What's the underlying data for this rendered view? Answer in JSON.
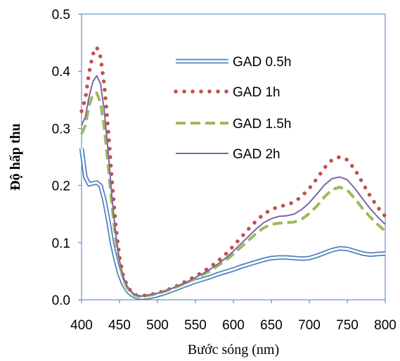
{
  "chart_data": {
    "type": "line",
    "title": "",
    "xlabel": "Bước sóng (nm)",
    "ylabel": "Độ hấp thu",
    "xlim": [
      400,
      800
    ],
    "ylim": [
      0,
      0.5
    ],
    "x_ticks": [
      "400",
      "450",
      "500",
      "550",
      "600",
      "650",
      "700",
      "750",
      "800"
    ],
    "y_ticks": [
      "0.0",
      "0.1",
      "0.2",
      "0.3",
      "0.4",
      "0.5"
    ],
    "grid": false,
    "legend_position": "top-right",
    "series": [
      {
        "name": "GAD 0.5h",
        "style": "double",
        "color": "#4F81BD",
        "points": [
          [
            400,
            0.265
          ],
          [
            405,
            0.215
          ],
          [
            410,
            0.202
          ],
          [
            415,
            0.204
          ],
          [
            420,
            0.205
          ],
          [
            425,
            0.2
          ],
          [
            430,
            0.175
          ],
          [
            435,
            0.14
          ],
          [
            440,
            0.1
          ],
          [
            445,
            0.07
          ],
          [
            450,
            0.045
          ],
          [
            455,
            0.028
          ],
          [
            460,
            0.017
          ],
          [
            465,
            0.01
          ],
          [
            470,
            0.006
          ],
          [
            475,
            0.004
          ],
          [
            480,
            0.0035
          ],
          [
            490,
            0.005
          ],
          [
            500,
            0.008
          ],
          [
            510,
            0.012
          ],
          [
            520,
            0.017
          ],
          [
            530,
            0.022
          ],
          [
            540,
            0.027
          ],
          [
            550,
            0.032
          ],
          [
            560,
            0.036
          ],
          [
            570,
            0.04
          ],
          [
            580,
            0.045
          ],
          [
            590,
            0.049
          ],
          [
            600,
            0.053
          ],
          [
            610,
            0.058
          ],
          [
            620,
            0.062
          ],
          [
            630,
            0.066
          ],
          [
            640,
            0.07
          ],
          [
            650,
            0.073
          ],
          [
            660,
            0.074
          ],
          [
            670,
            0.074
          ],
          [
            680,
            0.073
          ],
          [
            690,
            0.072
          ],
          [
            700,
            0.073
          ],
          [
            710,
            0.077
          ],
          [
            720,
            0.082
          ],
          [
            730,
            0.087
          ],
          [
            740,
            0.09
          ],
          [
            750,
            0.089
          ],
          [
            760,
            0.085
          ],
          [
            770,
            0.081
          ],
          [
            780,
            0.079
          ],
          [
            790,
            0.08
          ],
          [
            800,
            0.081
          ]
        ]
      },
      {
        "name": "GAD 1h",
        "style": "dotted",
        "color": "#C0504D",
        "points": [
          [
            400,
            0.33
          ],
          [
            405,
            0.352
          ],
          [
            410,
            0.398
          ],
          [
            415,
            0.43
          ],
          [
            420,
            0.442
          ],
          [
            425,
            0.425
          ],
          [
            430,
            0.375
          ],
          [
            435,
            0.3
          ],
          [
            440,
            0.21
          ],
          [
            445,
            0.13
          ],
          [
            450,
            0.075
          ],
          [
            455,
            0.042
          ],
          [
            460,
            0.025
          ],
          [
            465,
            0.015
          ],
          [
            470,
            0.009
          ],
          [
            475,
            0.007
          ],
          [
            480,
            0.007
          ],
          [
            490,
            0.009
          ],
          [
            500,
            0.012
          ],
          [
            510,
            0.016
          ],
          [
            520,
            0.021
          ],
          [
            530,
            0.027
          ],
          [
            540,
            0.034
          ],
          [
            550,
            0.041
          ],
          [
            560,
            0.049
          ],
          [
            570,
            0.058
          ],
          [
            580,
            0.068
          ],
          [
            590,
            0.08
          ],
          [
            600,
            0.094
          ],
          [
            610,
            0.109
          ],
          [
            620,
            0.124
          ],
          [
            630,
            0.138
          ],
          [
            640,
            0.15
          ],
          [
            650,
            0.158
          ],
          [
            660,
            0.163
          ],
          [
            670,
            0.166
          ],
          [
            680,
            0.171
          ],
          [
            690,
            0.181
          ],
          [
            700,
            0.195
          ],
          [
            710,
            0.212
          ],
          [
            720,
            0.231
          ],
          [
            730,
            0.245
          ],
          [
            740,
            0.25
          ],
          [
            750,
            0.245
          ],
          [
            760,
            0.228
          ],
          [
            770,
            0.205
          ],
          [
            780,
            0.182
          ],
          [
            790,
            0.162
          ],
          [
            800,
            0.146
          ]
        ]
      },
      {
        "name": "GAD 1.5h",
        "style": "dashed",
        "color": "#9BBB59",
        "points": [
          [
            400,
            0.29
          ],
          [
            405,
            0.305
          ],
          [
            410,
            0.34
          ],
          [
            415,
            0.36
          ],
          [
            420,
            0.362
          ],
          [
            425,
            0.345
          ],
          [
            430,
            0.3
          ],
          [
            435,
            0.235
          ],
          [
            440,
            0.165
          ],
          [
            445,
            0.105
          ],
          [
            450,
            0.062
          ],
          [
            455,
            0.036
          ],
          [
            460,
            0.021
          ],
          [
            465,
            0.013
          ],
          [
            470,
            0.008
          ],
          [
            475,
            0.006
          ],
          [
            480,
            0.006
          ],
          [
            490,
            0.008
          ],
          [
            500,
            0.011
          ],
          [
            510,
            0.015
          ],
          [
            520,
            0.02
          ],
          [
            530,
            0.025
          ],
          [
            540,
            0.031
          ],
          [
            550,
            0.037
          ],
          [
            560,
            0.044
          ],
          [
            570,
            0.051
          ],
          [
            580,
            0.06
          ],
          [
            590,
            0.069
          ],
          [
            600,
            0.08
          ],
          [
            610,
            0.092
          ],
          [
            620,
            0.104
          ],
          [
            630,
            0.116
          ],
          [
            640,
            0.126
          ],
          [
            650,
            0.132
          ],
          [
            660,
            0.134
          ],
          [
            670,
            0.135
          ],
          [
            680,
            0.136
          ],
          [
            690,
            0.141
          ],
          [
            700,
            0.151
          ],
          [
            710,
            0.164
          ],
          [
            720,
            0.18
          ],
          [
            730,
            0.193
          ],
          [
            740,
            0.197
          ],
          [
            750,
            0.192
          ],
          [
            760,
            0.177
          ],
          [
            770,
            0.16
          ],
          [
            780,
            0.145
          ],
          [
            790,
            0.132
          ],
          [
            800,
            0.12
          ]
        ]
      },
      {
        "name": "GAD 2h",
        "style": "solid",
        "color": "#8064A2",
        "points": [
          [
            400,
            0.305
          ],
          [
            405,
            0.32
          ],
          [
            410,
            0.356
          ],
          [
            415,
            0.382
          ],
          [
            420,
            0.392
          ],
          [
            425,
            0.378
          ],
          [
            430,
            0.33
          ],
          [
            435,
            0.26
          ],
          [
            440,
            0.18
          ],
          [
            445,
            0.115
          ],
          [
            450,
            0.068
          ],
          [
            455,
            0.04
          ],
          [
            460,
            0.024
          ],
          [
            465,
            0.015
          ],
          [
            470,
            0.009
          ],
          [
            475,
            0.007
          ],
          [
            480,
            0.0065
          ],
          [
            490,
            0.0085
          ],
          [
            500,
            0.0115
          ],
          [
            510,
            0.0155
          ],
          [
            520,
            0.0205
          ],
          [
            530,
            0.026
          ],
          [
            540,
            0.032
          ],
          [
            550,
            0.039
          ],
          [
            560,
            0.046
          ],
          [
            570,
            0.054
          ],
          [
            580,
            0.063
          ],
          [
            590,
            0.073
          ],
          [
            600,
            0.085
          ],
          [
            610,
            0.098
          ],
          [
            620,
            0.111
          ],
          [
            630,
            0.124
          ],
          [
            640,
            0.135
          ],
          [
            650,
            0.142
          ],
          [
            660,
            0.146
          ],
          [
            670,
            0.147
          ],
          [
            680,
            0.15
          ],
          [
            690,
            0.158
          ],
          [
            700,
            0.17
          ],
          [
            710,
            0.185
          ],
          [
            720,
            0.201
          ],
          [
            730,
            0.212
          ],
          [
            740,
            0.215
          ],
          [
            750,
            0.21
          ],
          [
            760,
            0.195
          ],
          [
            770,
            0.177
          ],
          [
            780,
            0.16
          ],
          [
            790,
            0.145
          ],
          [
            800,
            0.132
          ]
        ]
      }
    ]
  }
}
